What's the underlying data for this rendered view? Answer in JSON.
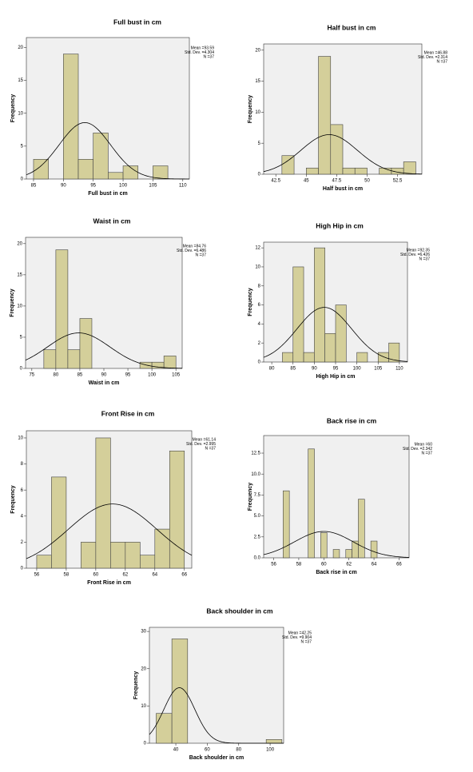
{
  "chart_data": [
    {
      "type": "histogram",
      "title": "Full bust in cm",
      "x_label": "Full bust in cm",
      "y_label": "Frequency",
      "color": "#d4cf9a",
      "bins": [
        85,
        87.5,
        90,
        92.5,
        95,
        97.5,
        100,
        102.5,
        105,
        107.5
      ],
      "counts": [
        3,
        0,
        19,
        3,
        7,
        1,
        2,
        0,
        2
      ],
      "xlim": [
        83.8,
        111.1
      ],
      "xticks": [
        85,
        90,
        95,
        100,
        105,
        110
      ],
      "ylim": [
        0,
        21.5
      ],
      "yticks": [
        0,
        5,
        10,
        15,
        20
      ],
      "stats": {
        "values": [
          93.59,
          4.304,
          37
        ],
        "value_labels": [
          "Mean =93.59",
          "Std. Dev. =4.304",
          "N =37"
        ]
      }
    },
    {
      "type": "histogram",
      "title": "Half bust in cm",
      "x_label": "Half bust in cm",
      "y_label": "Frequency",
      "color": "#d4cf9a",
      "bins": [
        43,
        44,
        45,
        46,
        47,
        48,
        49,
        50,
        51,
        52,
        53,
        54
      ],
      "counts": [
        3,
        0,
        1,
        19,
        8,
        1,
        1,
        0,
        1,
        1,
        2
      ],
      "xlim": [
        41.5,
        54.5
      ],
      "xticks": [
        42.5,
        45,
        47.5,
        50,
        52.5
      ],
      "ylim": [
        0,
        21
      ],
      "yticks": [
        0,
        5,
        10,
        15,
        20
      ],
      "stats": {
        "values": [
          46.88,
          2.314,
          37
        ],
        "value_labels": [
          "Mean =46.88",
          "Std. Dev. =2.314",
          "N =37"
        ]
      }
    },
    {
      "type": "histogram",
      "title": "Waist in cm",
      "x_label": "Waist in cm",
      "y_label": "Frequency",
      "color": "#d4cf9a",
      "bins": [
        77.5,
        80,
        82.5,
        85,
        87.5,
        90,
        92.5,
        95,
        97.5,
        100,
        102.5,
        105
      ],
      "counts": [
        3,
        19,
        3,
        8,
        0,
        0,
        0,
        0,
        1,
        1,
        2
      ],
      "xlim": [
        73.7,
        106.3
      ],
      "xticks": [
        75,
        80,
        85,
        90,
        95,
        100,
        105
      ],
      "ylim": [
        0,
        21
      ],
      "yticks": [
        0,
        5,
        10,
        15,
        20
      ],
      "stats": {
        "values": [
          84.76,
          6.486,
          37
        ],
        "value_labels": [
          "Mean =84.76",
          "Std. Dev. =6.486",
          "N =37"
        ]
      }
    },
    {
      "type": "histogram",
      "title": "High Hip in cm",
      "x_label": "High Hip in cm",
      "y_label": "Frequency",
      "color": "#d4cf9a",
      "bins": [
        82.5,
        85,
        87.5,
        90,
        92.5,
        95,
        97.5,
        100,
        102.5,
        105,
        107.5,
        110
      ],
      "counts": [
        1,
        10,
        1,
        12,
        3,
        6,
        0,
        1,
        0,
        1,
        2
      ],
      "xlim": [
        78.1,
        111.9
      ],
      "xticks": [
        80,
        85,
        90,
        95,
        100,
        105,
        110
      ],
      "ylim": [
        0,
        12.6
      ],
      "yticks": [
        0,
        2,
        4,
        6,
        8,
        10,
        12
      ],
      "stats": {
        "values": [
          92.35,
          6.426,
          37
        ],
        "value_labels": [
          "Mean =92.35",
          "Std. Dev. =6.426",
          "N =37"
        ]
      }
    },
    {
      "type": "histogram",
      "title": "Front Rise in cm",
      "x_label": "Front Rise in cm",
      "y_label": "Frequency",
      "color": "#d4cf9a",
      "bins": [
        56,
        57,
        58,
        59,
        60,
        61,
        62,
        63,
        64,
        65,
        66
      ],
      "counts": [
        1,
        7,
        0,
        2,
        10,
        2,
        2,
        1,
        3,
        9
      ],
      "xlim": [
        55.3,
        66.5
      ],
      "xticks": [
        56,
        58,
        60,
        62,
        64,
        66
      ],
      "ylim": [
        0,
        10.55
      ],
      "yticks": [
        0,
        2,
        4,
        6,
        8,
        10
      ],
      "stats": {
        "values": [
          61.14,
          2.995,
          37
        ],
        "value_labels": [
          "Mean =61.14",
          "Std. Dev. =2.995",
          "N =37"
        ]
      }
    },
    {
      "type": "histogram",
      "title": "Back rise in cm",
      "x_label": "Back rise in cm",
      "y_label": "Frequency",
      "color": "#d4cf9a",
      "bins": [
        56.75,
        57.25,
        57.75,
        58.25,
        58.75,
        59.25,
        59.75,
        60.25,
        60.75,
        61.25,
        61.75,
        62.25,
        62.75,
        63.25,
        63.75,
        64.25
      ],
      "counts": [
        8,
        0,
        0,
        0,
        13,
        0,
        3,
        0,
        1,
        0,
        1,
        2,
        7,
        0,
        2
      ],
      "xlim": [
        55.2,
        66.8
      ],
      "xticks": [
        56,
        58,
        60,
        62,
        64,
        66
      ],
      "ylim": [
        0,
        14.6
      ],
      "yticks": [
        {
          "value": 0,
          "label": "0.0"
        },
        2.5,
        {
          "value": 5,
          "label": "5.0"
        },
        7.5,
        {
          "value": 10,
          "label": "10.0"
        },
        12.5
      ],
      "stats": {
        "values": [
          60,
          2.342,
          37
        ],
        "value_labels": [
          "Mean =60",
          "Std. Dev. =2.342",
          "N =37"
        ]
      }
    },
    {
      "type": "histogram",
      "title": "Back shoulder in cm",
      "x_label": "Back shoulder in cm",
      "y_label": "Frequency",
      "color": "#d4cf9a",
      "bins": [
        27.5,
        37.5,
        47.5,
        57.5,
        67.5,
        77.5,
        87.5,
        97.5,
        107.5
      ],
      "counts": [
        8,
        28,
        0,
        0,
        0,
        0,
        0,
        1
      ],
      "xlim": [
        23.2,
        108.6
      ],
      "xticks": [
        40,
        60,
        80,
        100
      ],
      "ylim": [
        0,
        31.1
      ],
      "yticks": [
        0,
        10,
        20,
        30
      ],
      "stats": {
        "values": [
          42.25,
          9.904,
          37
        ],
        "value_labels": [
          "Mean =42.25",
          "Std. Dev. =9.904",
          "N =37"
        ]
      }
    }
  ]
}
